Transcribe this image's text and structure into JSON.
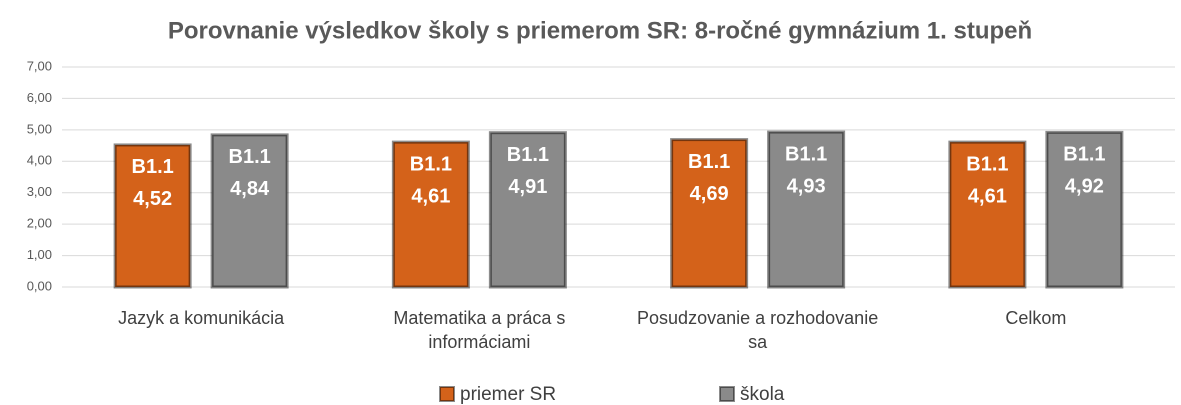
{
  "chart_data": {
    "type": "bar",
    "title": "Porovnanie výsledkov školy s priemerom SR: 8-ročné gymnázium 1. stupeň",
    "categories": [
      "Jazyk a komunikácia",
      "Matematika a práca s informáciami",
      "Posudzovanie a rozhodovanie sa",
      "Celkom"
    ],
    "series": [
      {
        "name": "priemer SR",
        "color": "#d4621a",
        "values": [
          4.52,
          4.61,
          4.69,
          4.61
        ],
        "value_labels": [
          "4,52",
          "4,61",
          "4,69",
          "4,61"
        ],
        "level_labels": [
          "B1.1",
          "B1.1",
          "B1.1",
          "B1.1"
        ]
      },
      {
        "name": "škola",
        "color": "#8a8a8a",
        "values": [
          4.84,
          4.91,
          4.93,
          4.92
        ],
        "value_labels": [
          "4,84",
          "4,91",
          "4,93",
          "4,92"
        ],
        "level_labels": [
          "B1.1",
          "B1.1",
          "B1.1",
          "B1.1"
        ]
      }
    ],
    "ylim": [
      0,
      7
    ],
    "yticks": [
      {
        "value": 0,
        "label": "0,00"
      },
      {
        "value": 1,
        "label": "1,00"
      },
      {
        "value": 2,
        "label": "2,00"
      },
      {
        "value": 3,
        "label": "3,00"
      },
      {
        "value": 4,
        "label": "4,00"
      },
      {
        "value": 5,
        "label": "5,00"
      },
      {
        "value": 6,
        "label": "6,00"
      },
      {
        "value": 7,
        "label": "7,00"
      }
    ],
    "grid": true,
    "legend": "bottom"
  }
}
